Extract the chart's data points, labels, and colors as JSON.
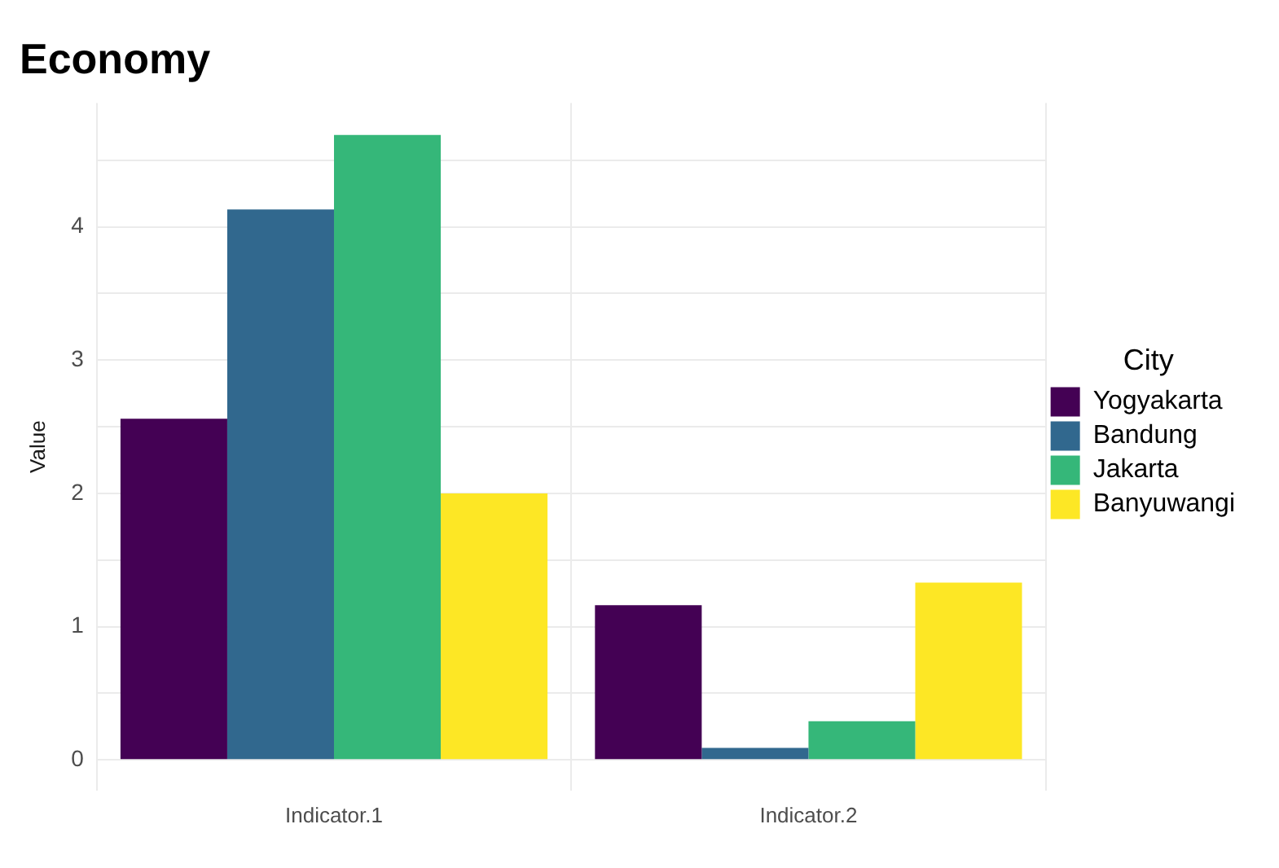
{
  "chart_data": {
    "type": "bar",
    "title": "Economy",
    "ylabel": "Value",
    "legend_title": "City",
    "categories": [
      "Indicator.1",
      "Indicator.2"
    ],
    "series": [
      {
        "name": "Yogyakarta",
        "color": "#440154",
        "values": [
          2.56,
          1.16
        ]
      },
      {
        "name": "Bandung",
        "color": "#31688e",
        "values": [
          4.13,
          0.09
        ]
      },
      {
        "name": "Jakarta",
        "color": "#35b779",
        "values": [
          4.69,
          0.29
        ]
      },
      {
        "name": "Banyuwangi",
        "color": "#fde725",
        "values": [
          2.0,
          1.33
        ]
      }
    ],
    "ylim": [
      -0.23,
      4.93
    ],
    "yticks": [
      0,
      {
        "value": 0.5,
        "label": null
      },
      1,
      {
        "value": 1.5,
        "label": null
      },
      2,
      {
        "value": 2.5,
        "label": null
      },
      3,
      {
        "value": 3.5,
        "label": null
      },
      4,
      {
        "value": 4.5,
        "label": null
      }
    ],
    "grid": true,
    "legend": "right"
  }
}
